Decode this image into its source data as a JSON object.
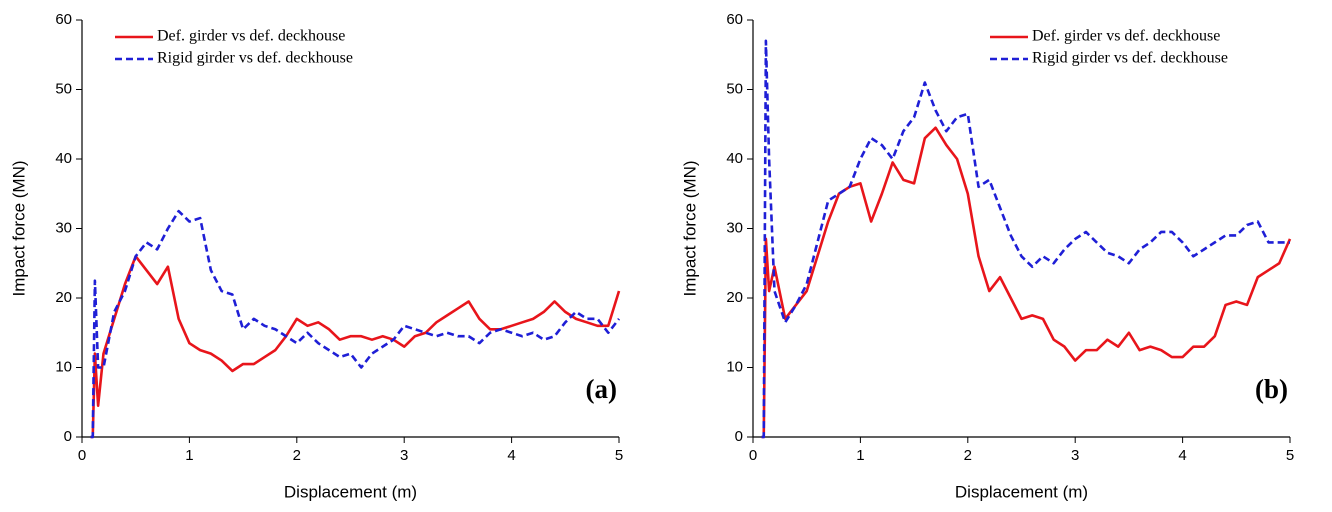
{
  "chart_data": [
    {
      "type": "line",
      "annotation": "(a)",
      "x_label": "Displacement (m)",
      "y_label": "Impact force (MN)",
      "xlim": [
        0,
        5
      ],
      "xticks": [
        0,
        1,
        2,
        3,
        4,
        5
      ],
      "ylim": [
        0,
        60
      ],
      "yticks": [
        0,
        10,
        20,
        30,
        40,
        50,
        60
      ],
      "legend": "upper left",
      "x": [
        0.08,
        0.1,
        0.12,
        0.15,
        0.2,
        0.3,
        0.4,
        0.5,
        0.6,
        0.7,
        0.8,
        0.9,
        1.0,
        1.1,
        1.2,
        1.3,
        1.4,
        1.5,
        1.6,
        1.7,
        1.8,
        1.9,
        2.0,
        2.1,
        2.2,
        2.3,
        2.4,
        2.5,
        2.6,
        2.7,
        2.8,
        2.9,
        3.0,
        3.1,
        3.2,
        3.3,
        3.4,
        3.5,
        3.6,
        3.7,
        3.8,
        3.9,
        4.0,
        4.1,
        4.2,
        4.3,
        4.4,
        4.5,
        4.6,
        4.7,
        4.8,
        4.9,
        5.0
      ],
      "series": [
        {
          "name": "Def. girder vs def. deckhouse",
          "color": "#e8151b",
          "style": "solid",
          "values": [
            0,
            0,
            12,
            4.5,
            12,
            17,
            22,
            26,
            24,
            22,
            24.5,
            17,
            13.5,
            12.5,
            12,
            11,
            9.5,
            10.5,
            10.5,
            11.5,
            12.5,
            14.5,
            17,
            16,
            16.5,
            15.5,
            14,
            14.5,
            14.5,
            14,
            14.5,
            14,
            13,
            14.5,
            15,
            16.5,
            17.5,
            18.5,
            19.5,
            17,
            15.5,
            15.5,
            16,
            16.5,
            17,
            18,
            19.5,
            18,
            17,
            16.5,
            16,
            16,
            21
          ]
        },
        {
          "name": "Rigid girder vs def. deckhouse",
          "color": "#1f1fd6",
          "style": "dashed",
          "values": [
            0,
            0,
            22.5,
            10,
            10,
            18,
            21,
            26,
            28,
            27,
            30,
            32.5,
            31,
            31.5,
            24,
            21,
            20.5,
            15.5,
            17,
            16,
            15.5,
            14.5,
            13.5,
            15,
            13.5,
            12.5,
            11.5,
            12,
            10,
            12,
            13,
            14,
            16,
            15.5,
            15,
            14.5,
            15,
            14.5,
            14.5,
            13.5,
            15,
            15.5,
            15,
            14.5,
            15,
            14,
            14.5,
            16.5,
            18,
            17,
            17,
            15,
            17
          ]
        }
      ]
    },
    {
      "type": "line",
      "annotation": "(b)",
      "x_label": "Displacement (m)",
      "y_label": "Impact force (MN)",
      "xlim": [
        0,
        5
      ],
      "xticks": [
        0,
        1,
        2,
        3,
        4,
        5
      ],
      "ylim": [
        0,
        60
      ],
      "yticks": [
        0,
        10,
        20,
        30,
        40,
        50,
        60
      ],
      "legend": "upper right",
      "x": [
        0.08,
        0.1,
        0.12,
        0.15,
        0.2,
        0.3,
        0.4,
        0.5,
        0.6,
        0.7,
        0.8,
        0.9,
        1.0,
        1.1,
        1.2,
        1.3,
        1.4,
        1.5,
        1.6,
        1.7,
        1.8,
        1.9,
        2.0,
        2.1,
        2.2,
        2.3,
        2.4,
        2.5,
        2.6,
        2.7,
        2.8,
        2.9,
        3.0,
        3.1,
        3.2,
        3.3,
        3.4,
        3.5,
        3.6,
        3.7,
        3.8,
        3.9,
        4.0,
        4.1,
        4.2,
        4.3,
        4.4,
        4.5,
        4.6,
        4.7,
        4.8,
        4.9,
        5.0
      ],
      "series": [
        {
          "name": "Def. girder vs def. deckhouse",
          "color": "#e8151b",
          "style": "solid",
          "values": [
            0,
            0,
            28.5,
            21,
            24.5,
            17,
            19,
            21,
            26,
            31,
            35,
            36,
            36.5,
            31,
            35,
            39.5,
            37,
            36.5,
            43,
            44.5,
            42,
            40,
            35,
            26,
            21,
            23,
            20,
            17,
            17.5,
            17,
            14,
            13,
            11,
            12.5,
            12.5,
            14,
            13,
            15,
            12.5,
            13,
            12.5,
            11.5,
            11.5,
            13,
            13,
            14.5,
            19,
            19.5,
            19,
            23,
            24,
            25,
            28.5
          ]
        },
        {
          "name": "Rigid girder vs def. deckhouse",
          "color": "#1f1fd6",
          "style": "dashed",
          "values": [
            0,
            0,
            57,
            40,
            21,
            16.5,
            19,
            22,
            28,
            34,
            35,
            36,
            40,
            43,
            42,
            40,
            44,
            46,
            51,
            47,
            44,
            46,
            46.5,
            36,
            37,
            33,
            29,
            26,
            24.5,
            26,
            25,
            27,
            28.5,
            29.5,
            28,
            26.5,
            26,
            25,
            27,
            28,
            29.5,
            29.5,
            28,
            26,
            27,
            28,
            29,
            29,
            30.5,
            31,
            28,
            28,
            28
          ]
        }
      ]
    }
  ]
}
